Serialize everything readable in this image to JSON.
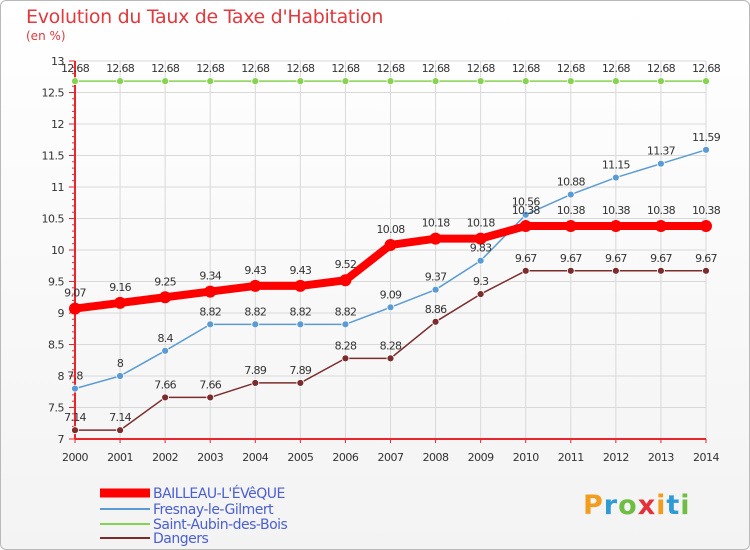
{
  "header": {
    "title": "Evolution du Taux de Taxe d'Habitation",
    "subtitle": "(en %)"
  },
  "logo": {
    "text": "Proxiti",
    "colors": [
      "#f29d1f",
      "#2f9ad6",
      "#6fbe44",
      "#e3313b",
      "#f29d1f",
      "#2f9ad6",
      "#6fbe44"
    ]
  },
  "colors": {
    "axis": "#e8262b",
    "grid": "#d9d9d9",
    "label": "#333333",
    "legend_text": "#4a5fd1"
  },
  "chart_data": {
    "type": "line",
    "x": [
      "2000",
      "2001",
      "2002",
      "2003",
      "2004",
      "2005",
      "2006",
      "2007",
      "2008",
      "2009",
      "2010",
      "2011",
      "2012",
      "2013",
      "2014"
    ],
    "y_ticks": [
      "7",
      "7.5",
      "8",
      "8.5",
      "9",
      "9.5",
      "10",
      "10.5",
      "11",
      "11.5",
      "12",
      "12.5",
      "13"
    ],
    "ylim": [
      7,
      13
    ],
    "grid": true,
    "legend_position": "bottom-left",
    "series": [
      {
        "name": "BAILLEAU-L'ÉVêQUE",
        "color": "#ff0000",
        "width": 8,
        "marker": 6,
        "values": [
          9.07,
          9.16,
          9.25,
          9.34,
          9.43,
          9.43,
          9.52,
          10.08,
          10.18,
          10.18,
          10.38,
          10.38,
          10.38,
          10.38,
          10.38
        ],
        "labels": [
          "9.07",
          "9.16",
          "9.25",
          "9.34",
          "9.43",
          "9.43",
          "9.52",
          "10.08",
          "10.18",
          "10.18",
          "10.38",
          "10.38",
          "10.38",
          "10.38",
          "10.38"
        ]
      },
      {
        "name": "Fresnay-le-Gilmert",
        "color": "#5b9bd5",
        "width": 1.5,
        "marker": 3.5,
        "values": [
          7.8,
          8,
          8.4,
          8.82,
          8.82,
          8.82,
          8.82,
          9.09,
          9.37,
          9.83,
          10.56,
          10.88,
          11.15,
          11.37,
          11.59
        ],
        "labels": [
          "7.8",
          "8",
          "8.4",
          "8.82",
          "8.82",
          "8.82",
          "8.82",
          "9.09",
          "9.37",
          "9.83",
          "10.56",
          "10.88",
          "11.15",
          "11.37",
          "11.59"
        ]
      },
      {
        "name": "Saint-Aubin-des-Bois",
        "color": "#86d351",
        "width": 1.5,
        "marker": 3.5,
        "values": [
          12.68,
          12.68,
          12.68,
          12.68,
          12.68,
          12.68,
          12.68,
          12.68,
          12.68,
          12.68,
          12.68,
          12.68,
          12.68,
          12.68,
          12.68
        ],
        "labels": [
          "12.68",
          "12.68",
          "12.68",
          "12.68",
          "12.68",
          "12.68",
          "12.68",
          "12.68",
          "12.68",
          "12.68",
          "12.68",
          "12.68",
          "12.68",
          "12.68",
          "12.68"
        ]
      },
      {
        "name": "Dangers",
        "color": "#7b2c2c",
        "width": 1.5,
        "marker": 3.5,
        "values": [
          7.14,
          7.14,
          7.66,
          7.66,
          7.89,
          7.89,
          8.28,
          8.28,
          8.86,
          9.3,
          9.67,
          9.67,
          9.67,
          9.67,
          9.67
        ],
        "labels": [
          "7.14",
          "7.14",
          "7.66",
          "7.66",
          "7.89",
          "7.89",
          "8.28",
          "8.28",
          "8.86",
          "9.3",
          "9.67",
          "9.67",
          "9.67",
          "9.67",
          "9.67"
        ]
      }
    ]
  }
}
